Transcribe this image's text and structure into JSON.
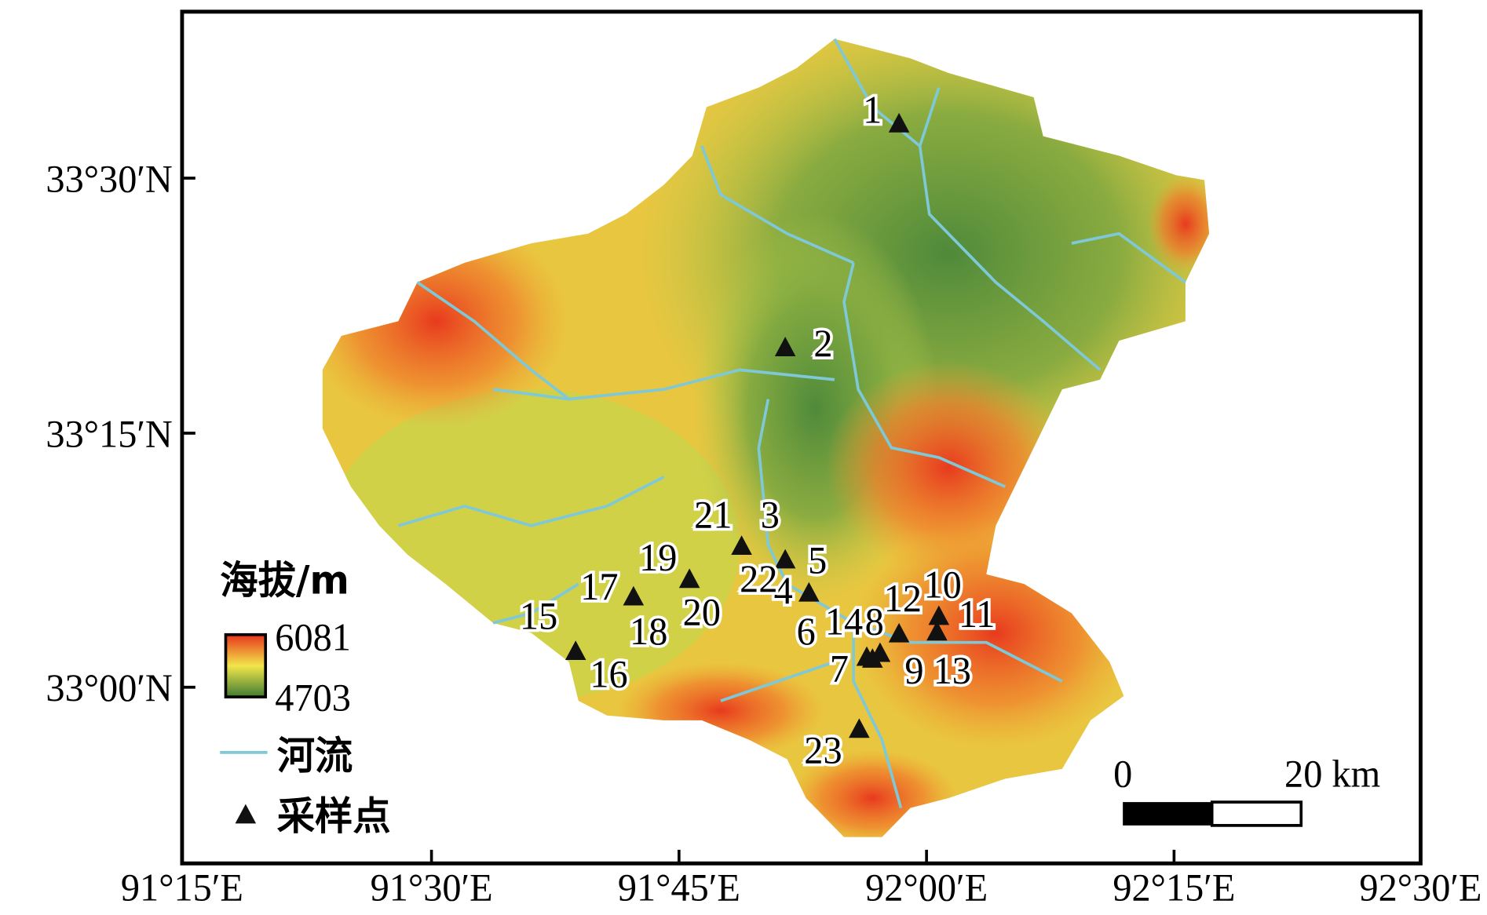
{
  "axes": {
    "x_labels": [
      "91°15′E",
      "91°30′E",
      "91°45′E",
      "92°00′E",
      "92°15′E",
      "92°30′E"
    ],
    "y_labels": [
      "33°30′N",
      "33°15′N",
      "33°00′N"
    ]
  },
  "legend": {
    "title": "海拔/m",
    "elevation_max": "6081",
    "elevation_min": "4703",
    "river": "河流",
    "sample_point": "采样点"
  },
  "scale_bar": {
    "start": "0",
    "end": "20 km"
  },
  "sample_labels": [
    "1",
    "2",
    "3",
    "4",
    "5",
    "6",
    "7",
    "8",
    "9",
    "10",
    "11",
    "12",
    "13",
    "14",
    "15",
    "16",
    "17",
    "18",
    "19",
    "20",
    "21",
    "22",
    "23"
  ]
}
